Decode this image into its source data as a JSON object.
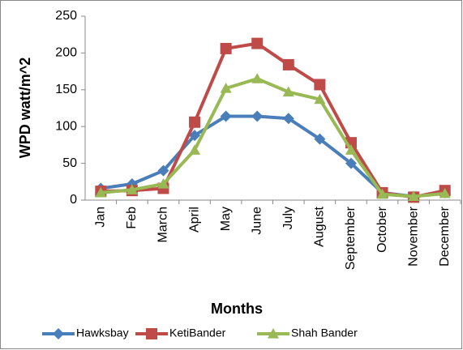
{
  "chart_data": {
    "type": "line",
    "x_label": "Months",
    "y_label": "WPD watt/m^2",
    "categories": [
      "Jan",
      "Feb",
      "March",
      "April",
      "May",
      "June",
      "July",
      "August",
      "September",
      "October",
      "November",
      "December"
    ],
    "series": [
      {
        "name": "Hawksbay",
        "color": "#4a7ebb",
        "marker": "diamond",
        "values": [
          16,
          22,
          40,
          88,
          114,
          114,
          111,
          83,
          50,
          10,
          5,
          10
        ]
      },
      {
        "name": "KetiBander",
        "color": "#be4b48",
        "marker": "square",
        "values": [
          12,
          13,
          16,
          106,
          206,
          213,
          184,
          157,
          78,
          10,
          4,
          13
        ]
      },
      {
        "name": "Shah Bander",
        "color": "#98b954",
        "marker": "triangle",
        "values": [
          10,
          14,
          22,
          68,
          152,
          165,
          147,
          137,
          68,
          8,
          5,
          9
        ]
      }
    ],
    "ylim": [
      0,
      250
    ],
    "yticks": [
      0,
      50,
      100,
      150,
      200,
      250
    ],
    "grid": false,
    "legend": "bottom"
  }
}
